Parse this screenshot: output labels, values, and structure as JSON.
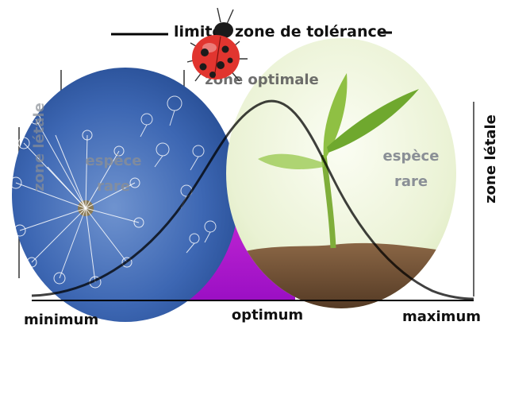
{
  "header": {
    "limits_label": "limites",
    "tolerance_label": "zone de tolérance"
  },
  "zones": {
    "optimal": "zone optimale",
    "lethal_left": "zone létale",
    "lethal_right": "zone létale",
    "rare_left_line1": "espèce",
    "rare_left_line2": "rare",
    "rare_right_line1": "espèce",
    "rare_right_line2": "rare"
  },
  "axis": {
    "minimum": "minimum",
    "optimum": "optimum",
    "maximum": "maximum"
  },
  "colors": {
    "optimum_fill": "#c026d3",
    "curve": "#000000",
    "left_disc": "#2f5ba8",
    "right_disc": "#eef5da",
    "soil": "#6b4a2e",
    "label_grey": "#8a8f96"
  },
  "icons": {
    "top": "ladybug-icon",
    "left_disc": "dandelion-icon",
    "right_disc": "sprout-icon"
  }
}
